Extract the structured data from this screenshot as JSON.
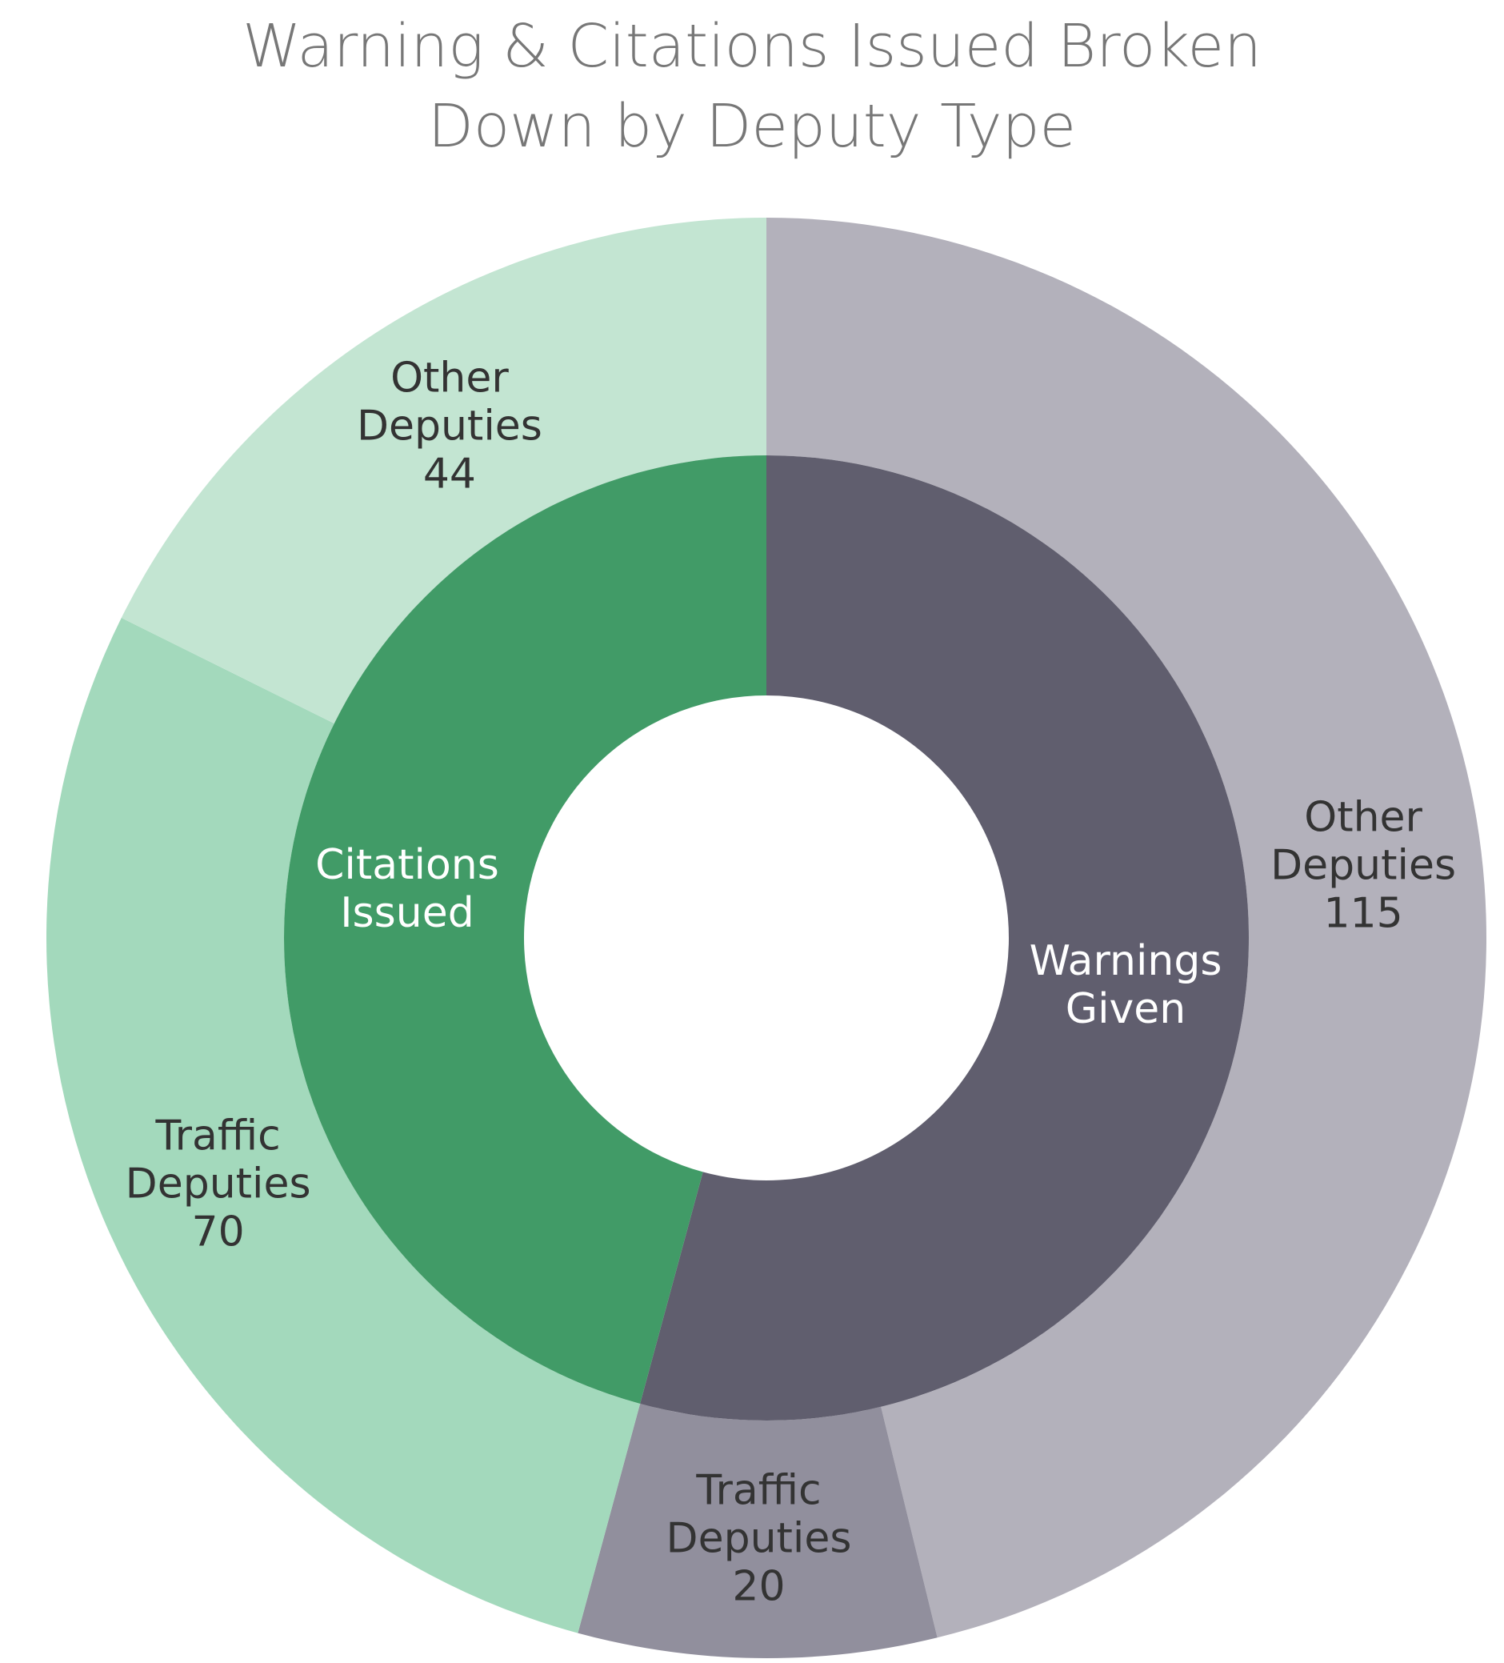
{
  "chart_data": {
    "type": "sunburst",
    "title": "Warning & Citations Issued Broken Down by Deputy Type",
    "groups": [
      {
        "name": "Warnings Given",
        "color": "#605e6e",
        "children": [
          {
            "name": "Other Deputies",
            "value": 115,
            "color": "#b3b1bb"
          },
          {
            "name": "Traffic Deputies",
            "value": 20,
            "color": "#918f9d"
          }
        ]
      },
      {
        "name": "Citations Issued",
        "color": "#419b67",
        "children": [
          {
            "name": "Traffic Deputies",
            "value": 70,
            "color": "#a3d9bc"
          },
          {
            "name": "Other Deputies",
            "value": 44,
            "color": "#c3e5d2"
          }
        ]
      }
    ]
  }
}
